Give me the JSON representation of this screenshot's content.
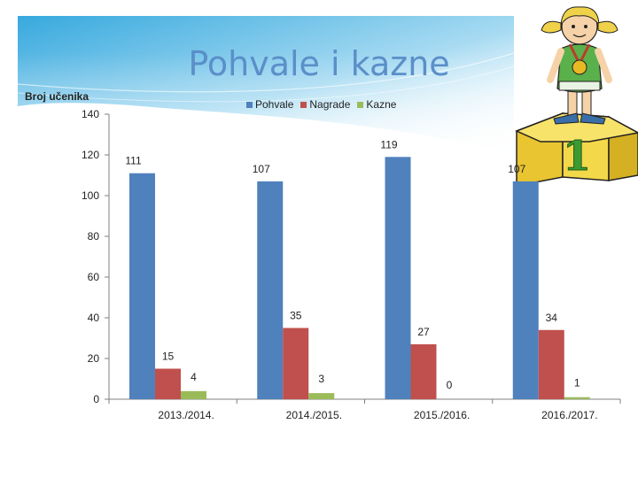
{
  "page": {
    "title": "Pohvale i kazne"
  },
  "colors": {
    "pohvale": "#4f81bd",
    "nagrade": "#c0504d",
    "kazne": "#9bbb59",
    "banner": "#4aa9dc"
  },
  "decoration": {
    "image": "girl-on-winner-podium",
    "podium_number": "1"
  },
  "chart_data": {
    "type": "bar",
    "title": "Pohvale i kazne",
    "ylabel": "Broj učenika",
    "xlabel": "",
    "ylim": [
      0,
      140
    ],
    "yticks": [
      0,
      20,
      40,
      60,
      80,
      100,
      120,
      140
    ],
    "categories": [
      "2013./2014.",
      "2014./2015.",
      "2015./2016.",
      "2016./2017."
    ],
    "series": [
      {
        "name": "Pohvale",
        "color": "#4f81bd",
        "values": [
          111,
          107,
          119,
          107
        ]
      },
      {
        "name": "Nagrade",
        "color": "#c0504d",
        "values": [
          15,
          35,
          27,
          34
        ]
      },
      {
        "name": "Kazne",
        "color": "#9bbb59",
        "values": [
          4,
          3,
          0,
          1
        ]
      }
    ],
    "legend": "top-center",
    "grid": false
  }
}
